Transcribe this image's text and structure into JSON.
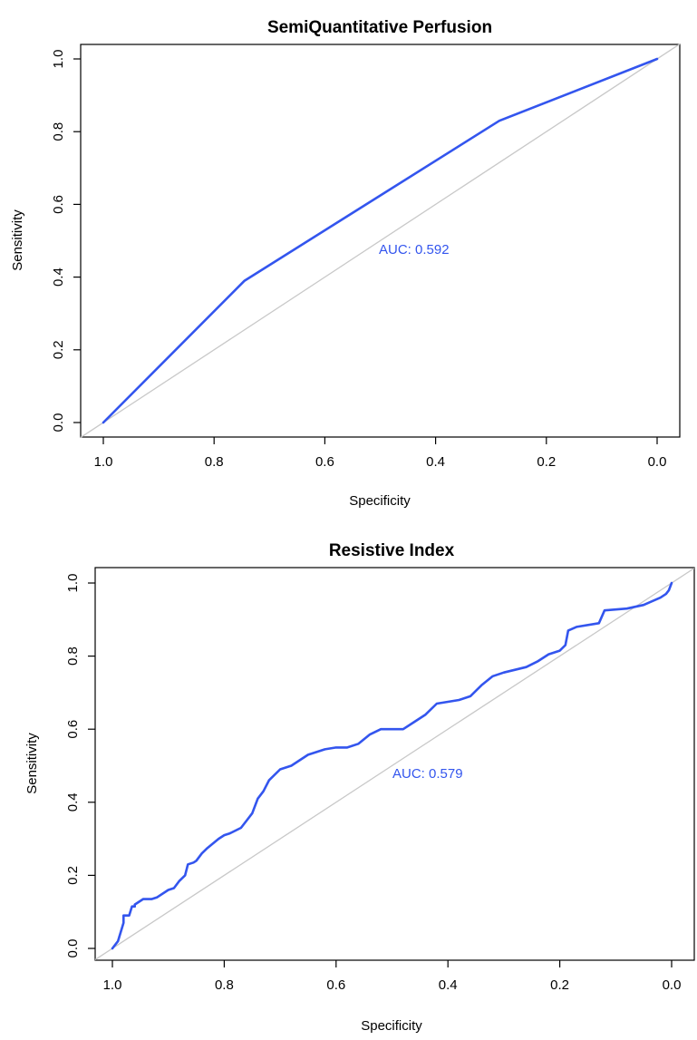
{
  "colors": {
    "roc_line": "#3355ee",
    "diagonal": "#c8c8c8",
    "frame": "#000000"
  },
  "chart_data": [
    {
      "type": "line",
      "title": "SemiQuantitative Perfusion",
      "xlabel": "Specificity",
      "ylabel": "Sensitivity",
      "x_reversed": true,
      "xlim": [
        1.0,
        0.0
      ],
      "ylim": [
        0.0,
        1.0
      ],
      "x_ticks": [
        "1.0",
        "0.8",
        "0.6",
        "0.4",
        "0.2",
        "0.0"
      ],
      "y_ticks": [
        "0.0",
        "0.2",
        "0.4",
        "0.6",
        "0.8",
        "1.0"
      ],
      "annotation": "AUC: 0.592",
      "reference_line": "diagonal",
      "grid": false,
      "series": [
        {
          "x": [
            1.0,
            0.745,
            0.285,
            0.0
          ],
          "y": [
            0.0,
            0.39,
            0.83,
            1.0
          ]
        }
      ]
    },
    {
      "type": "line",
      "title": "Resistive Index",
      "xlabel": "Specificity",
      "ylabel": "Sensitivity",
      "x_reversed": true,
      "xlim": [
        1.0,
        0.0
      ],
      "ylim": [
        0.0,
        1.0
      ],
      "x_ticks": [
        "1.0",
        "0.8",
        "0.6",
        "0.4",
        "0.2",
        "0.0"
      ],
      "y_ticks": [
        "0.0",
        "0.2",
        "0.4",
        "0.6",
        "0.8",
        "1.0"
      ],
      "annotation": "AUC: 0.579",
      "reference_line": "diagonal",
      "grid": false,
      "series": [
        {
          "x": [
            1.0,
            0.99,
            0.99,
            0.98,
            0.98,
            0.97,
            0.965,
            0.96,
            0.96,
            0.945,
            0.93,
            0.92,
            0.9,
            0.89,
            0.88,
            0.87,
            0.865,
            0.855,
            0.85,
            0.84,
            0.83,
            0.81,
            0.8,
            0.79,
            0.77,
            0.76,
            0.75,
            0.74,
            0.73,
            0.72,
            0.7,
            0.68,
            0.65,
            0.62,
            0.6,
            0.58,
            0.56,
            0.54,
            0.52,
            0.48,
            0.46,
            0.44,
            0.42,
            0.38,
            0.36,
            0.34,
            0.32,
            0.3,
            0.26,
            0.24,
            0.22,
            0.2,
            0.19,
            0.185,
            0.17,
            0.13,
            0.12,
            0.08,
            0.05,
            0.02,
            0.01,
            0.005,
            0.0
          ],
          "y": [
            0.0,
            0.02,
            0.02,
            0.07,
            0.09,
            0.09,
            0.115,
            0.115,
            0.12,
            0.135,
            0.135,
            0.14,
            0.16,
            0.165,
            0.185,
            0.2,
            0.23,
            0.235,
            0.24,
            0.26,
            0.275,
            0.3,
            0.31,
            0.315,
            0.33,
            0.35,
            0.37,
            0.41,
            0.43,
            0.46,
            0.49,
            0.5,
            0.53,
            0.545,
            0.55,
            0.55,
            0.56,
            0.585,
            0.6,
            0.6,
            0.62,
            0.64,
            0.67,
            0.68,
            0.69,
            0.72,
            0.745,
            0.755,
            0.77,
            0.785,
            0.805,
            0.815,
            0.83,
            0.87,
            0.88,
            0.89,
            0.925,
            0.93,
            0.94,
            0.96,
            0.97,
            0.98,
            1.0
          ]
        }
      ]
    }
  ]
}
